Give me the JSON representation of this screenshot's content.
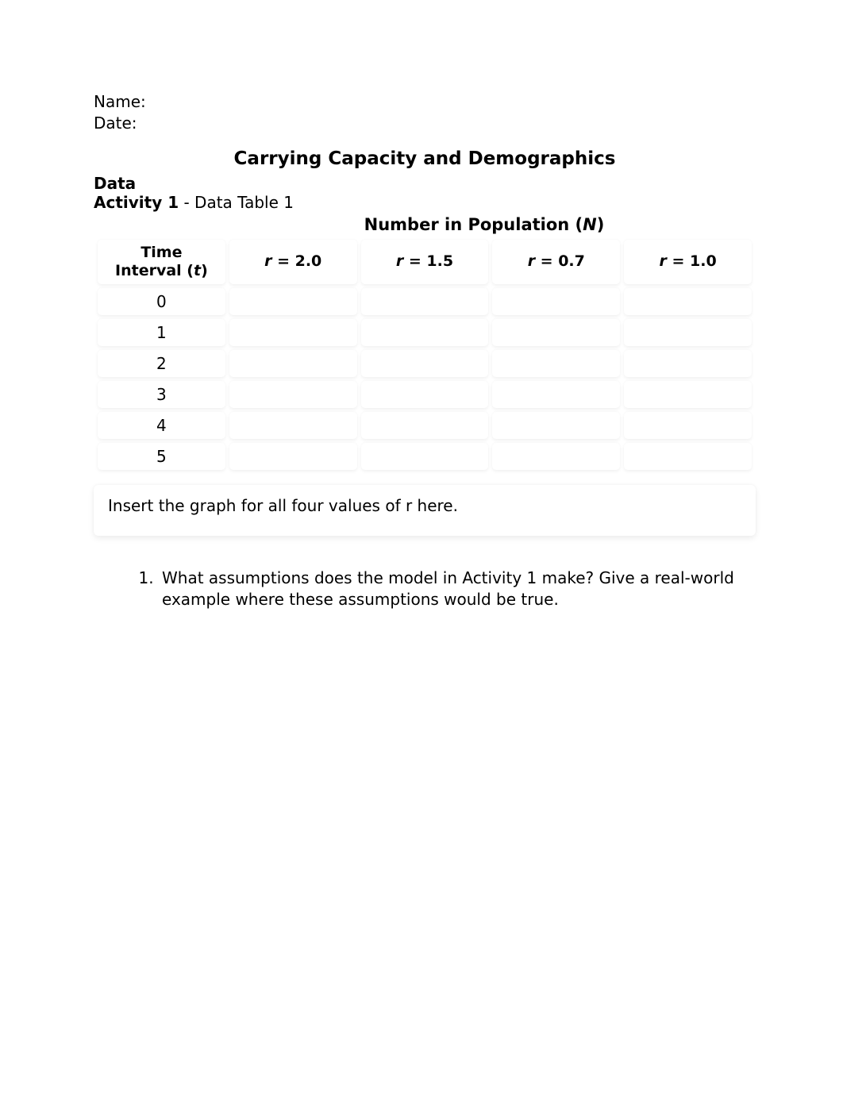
{
  "header": {
    "name_label": "Name:",
    "date_label": "Date:"
  },
  "title": "Carrying Capacity and Demographics",
  "section": {
    "data_label": "Data",
    "activity_bold": "Activity 1",
    "activity_rest": " - Data Table 1"
  },
  "table": {
    "super_title_prefix": "Number in Population (",
    "super_title_var": "N",
    "super_title_suffix": ")",
    "columns": [
      {
        "line1": "Time",
        "line2_prefix": "Interval (",
        "line2_var": "t",
        "line2_suffix": ")"
      },
      {
        "r_var": "r",
        "eq": " = 2.0"
      },
      {
        "r_var": "r",
        "eq": " = 1.5"
      },
      {
        "r_var": "r",
        "eq": " = 0.7"
      },
      {
        "r_var": "r",
        "eq": " = 1.0"
      }
    ],
    "rows": [
      [
        "0",
        "",
        "",
        "",
        ""
      ],
      [
        "1",
        "",
        "",
        "",
        ""
      ],
      [
        "2",
        "",
        "",
        "",
        ""
      ],
      [
        "3",
        "",
        "",
        "",
        ""
      ],
      [
        "4",
        "",
        "",
        "",
        ""
      ],
      [
        "5",
        "",
        "",
        "",
        ""
      ]
    ],
    "cell_bg": "#ffffff",
    "cell_radius": 5
  },
  "graph_box": "Insert the graph for all four values of r here.",
  "questions": [
    "What assumptions does the model in Activity 1 make? Give a real-world example where these assumptions would be true."
  ],
  "colors": {
    "background": "#ffffff",
    "text": "#000000"
  },
  "typography": {
    "body_fontsize": 20,
    "title_fontsize": 23,
    "table_header_fontsize": 19
  }
}
